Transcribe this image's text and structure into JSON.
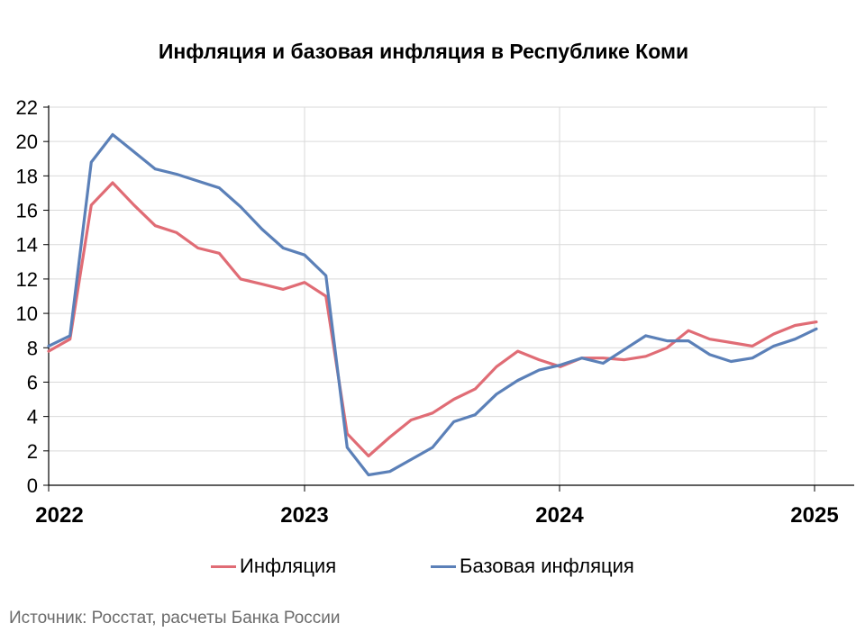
{
  "title": "Инфляция и базовая инфляция в Республике Коми",
  "source": "Источник: Росстат, расчеты Банка России",
  "colors": {
    "inflation": "#E06C75",
    "core": "#5B80B8",
    "grid": "#d9d9d9",
    "axis": "#000000"
  },
  "chart_data": {
    "type": "line",
    "title": "Инфляция и базовая инфляция в Республике Коми",
    "xlabel": "",
    "ylabel": "",
    "ylim": [
      0,
      22
    ],
    "yticks": [
      "0",
      "2",
      "4",
      "6",
      "8",
      "10",
      "12",
      "14",
      "16",
      "18",
      "20",
      "22"
    ],
    "xticks": [
      "2022",
      "2023",
      "2024",
      "2025"
    ],
    "grid": true,
    "legend_position": "bottom",
    "x": [
      "2022-01",
      "2022-02",
      "2022-03",
      "2022-04",
      "2022-05",
      "2022-06",
      "2022-07",
      "2022-08",
      "2022-09",
      "2022-10",
      "2022-11",
      "2022-12",
      "2023-01",
      "2023-02",
      "2023-03",
      "2023-04",
      "2023-05",
      "2023-06",
      "2023-07",
      "2023-08",
      "2023-09",
      "2023-10",
      "2023-11",
      "2023-12",
      "2024-01",
      "2024-02",
      "2024-03",
      "2024-04",
      "2024-05",
      "2024-06",
      "2024-07",
      "2024-08",
      "2024-09",
      "2024-10",
      "2024-11",
      "2024-12",
      "2025-01"
    ],
    "series": [
      {
        "name": "Инфляция",
        "values": [
          7.8,
          8.5,
          16.3,
          17.6,
          16.3,
          15.1,
          14.7,
          13.8,
          13.5,
          12.0,
          11.7,
          11.4,
          11.8,
          11.0,
          3.0,
          1.7,
          2.8,
          3.8,
          4.2,
          5.0,
          5.6,
          6.9,
          7.8,
          7.3,
          6.9,
          7.4,
          7.4,
          7.3,
          7.5,
          8.0,
          9.0,
          8.5,
          8.3,
          8.1,
          8.8,
          9.3,
          9.5
        ]
      },
      {
        "name": "Базовая инфляция",
        "values": [
          8.1,
          8.7,
          18.8,
          20.4,
          19.4,
          18.4,
          18.1,
          17.7,
          17.3,
          16.2,
          14.9,
          13.8,
          13.4,
          12.2,
          2.2,
          0.6,
          0.8,
          1.5,
          2.2,
          3.7,
          4.1,
          5.3,
          6.1,
          6.7,
          7.0,
          7.4,
          7.1,
          7.9,
          8.7,
          8.4,
          8.4,
          7.6,
          7.2,
          7.4,
          8.1,
          8.5,
          9.1
        ]
      }
    ]
  }
}
